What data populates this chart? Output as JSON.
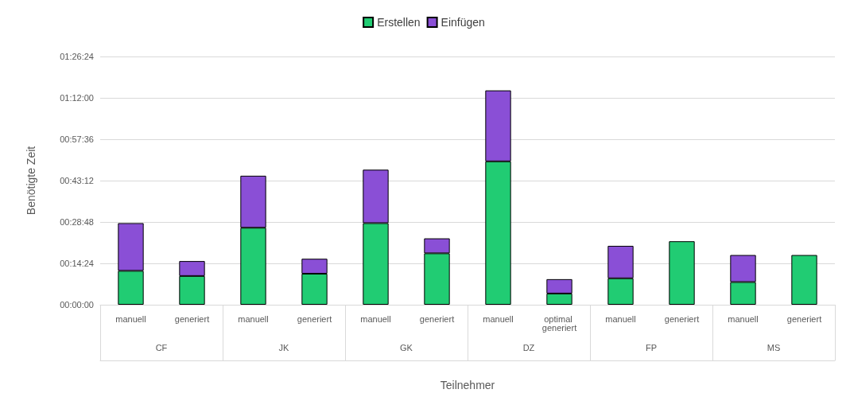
{
  "chart_data": {
    "type": "bar",
    "stacked": true,
    "xlabel": "Teilnehmer",
    "ylabel": "Benötigte Zeit",
    "categories": [
      "manuell",
      "generiert",
      "manuell",
      "generiert",
      "manuell",
      "generiert",
      "manuell",
      "optimal generiert",
      "manuell",
      "generiert",
      "manuell",
      "generiert"
    ],
    "annotations": [
      "CF",
      "JK",
      "GK",
      "DZ",
      "FP",
      "MS"
    ],
    "series": [
      {
        "name": "Erstellen",
        "color": "#21cc73",
        "values": [
          11.8,
          10.0,
          26.8,
          10.8,
          28.4,
          17.9,
          49.9,
          3.9,
          9.2,
          22.1,
          7.9,
          17.3
        ]
      },
      {
        "name": "Einfügen",
        "color": "#8a4fd6",
        "values": [
          16.6,
          5.2,
          18.1,
          5.2,
          18.6,
          5.2,
          24.7,
          5.0,
          11.3,
          null,
          9.4,
          null
        ]
      }
    ],
    "ylim": [
      0,
      86.4
    ],
    "yticks": [
      {
        "value": 0,
        "label": "00:00:00"
      },
      {
        "value": 14.4,
        "label": "00:14:24"
      },
      {
        "value": 28.8,
        "label": "00:28:48"
      },
      {
        "value": 43.2,
        "label": "00:43:12"
      },
      {
        "value": 57.6,
        "label": "00:57:36"
      },
      {
        "value": 72,
        "label": "01:12:00"
      },
      {
        "value": 86.4,
        "label": "01:26:24"
      }
    ],
    "grid": "y",
    "legend": "top"
  }
}
